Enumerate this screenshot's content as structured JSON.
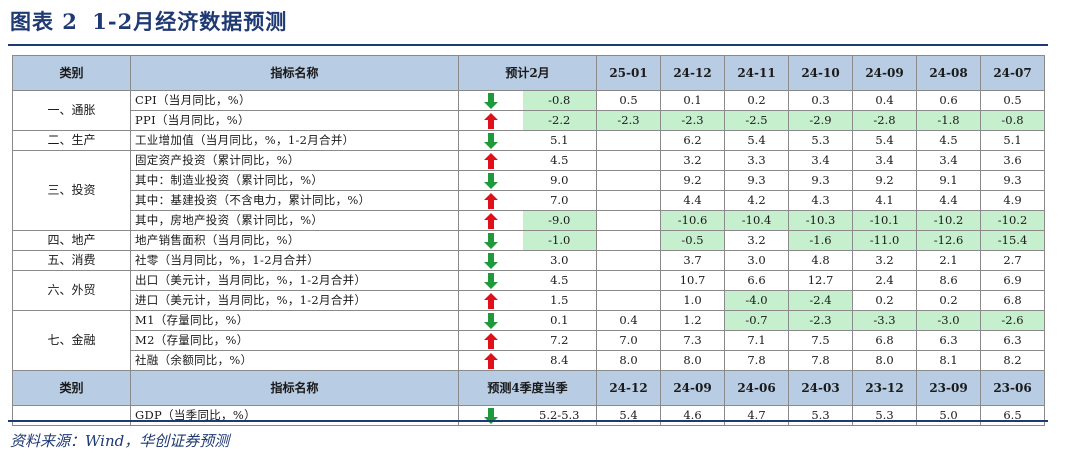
{
  "title": {
    "prefix": "图表 2",
    "text": "1-2月经济数据预测"
  },
  "colors": {
    "up": "#e0101a",
    "down": "#1f9a3a",
    "header_bg": "#b8cce4",
    "highlight": "#c6efce",
    "accent": "#1f3a73"
  },
  "header1": {
    "category": "类别",
    "indicator": "指标名称",
    "forecast": "预计2月",
    "periods": [
      "25-01",
      "24-12",
      "24-11",
      "24-10",
      "24-09",
      "24-08",
      "24-07"
    ]
  },
  "rows": [
    {
      "category": "一、通胀",
      "span": 2,
      "indicator": "CPI（当月同比，%）",
      "arrow": "down",
      "forecast": "-0.8",
      "forecast_hl": true,
      "values": [
        "0.5",
        "0.1",
        "0.2",
        "0.3",
        "0.4",
        "0.6",
        "0.5"
      ],
      "hl": []
    },
    {
      "indicator": "PPI（当月同比，%）",
      "arrow": "up",
      "forecast": "-2.2",
      "forecast_hl": true,
      "values": [
        "-2.3",
        "-2.3",
        "-2.5",
        "-2.9",
        "-2.8",
        "-1.8",
        "-0.8"
      ],
      "hl": [
        0,
        1,
        2,
        3,
        4,
        5,
        6
      ]
    },
    {
      "category": "二、生产",
      "span": 1,
      "indicator": "工业增加值（当月同比，%，1-2月合并）",
      "arrow": "down",
      "forecast": "5.1",
      "forecast_hl": false,
      "values": [
        "",
        "6.2",
        "5.4",
        "5.3",
        "5.4",
        "4.5",
        "5.1"
      ],
      "hl": []
    },
    {
      "category": "三、投资",
      "span": 4,
      "indicator": "固定资产投资（累计同比，%）",
      "arrow": "up",
      "forecast": "4.5",
      "forecast_hl": false,
      "values": [
        "",
        "3.2",
        "3.3",
        "3.4",
        "3.4",
        "3.4",
        "3.6"
      ],
      "hl": []
    },
    {
      "indicator": "其中：制造业投资（累计同比，%）",
      "arrow": "down",
      "forecast": "9.0",
      "forecast_hl": false,
      "values": [
        "",
        "9.2",
        "9.3",
        "9.3",
        "9.2",
        "9.1",
        "9.3"
      ],
      "hl": []
    },
    {
      "indicator": "其中：基建投资（不含电力，累计同比，%）",
      "arrow": "up",
      "forecast": "7.0",
      "forecast_hl": false,
      "values": [
        "",
        "4.4",
        "4.2",
        "4.3",
        "4.1",
        "4.4",
        "4.9"
      ],
      "hl": []
    },
    {
      "indicator": "其中，房地产投资（累计同比，%）",
      "arrow": "up",
      "forecast": "-9.0",
      "forecast_hl": true,
      "values": [
        "",
        "-10.6",
        "-10.4",
        "-10.3",
        "-10.1",
        "-10.2",
        "-10.2"
      ],
      "hl": [
        1,
        2,
        3,
        4,
        5,
        6
      ]
    },
    {
      "category": "四、地产",
      "span": 1,
      "indicator": "地产销售面积（当月同比，%）",
      "arrow": "down",
      "forecast": "-1.0",
      "forecast_hl": true,
      "values": [
        "",
        "-0.5",
        "3.2",
        "-1.6",
        "-11.0",
        "-12.6",
        "-15.4"
      ],
      "hl": [
        1,
        3,
        4,
        5,
        6
      ]
    },
    {
      "category": "五、消费",
      "span": 1,
      "indicator": "社零（当月同比，%，1-2月合并）",
      "arrow": "down",
      "forecast": "3.0",
      "forecast_hl": false,
      "values": [
        "",
        "3.7",
        "3.0",
        "4.8",
        "3.2",
        "2.1",
        "2.7"
      ],
      "hl": []
    },
    {
      "category": "六、外贸",
      "span": 2,
      "indicator": "出口（美元计，当月同比，%，1-2月合并）",
      "arrow": "down",
      "forecast": "4.5",
      "forecast_hl": false,
      "values": [
        "",
        "10.7",
        "6.6",
        "12.7",
        "2.4",
        "8.6",
        "6.9"
      ],
      "hl": []
    },
    {
      "indicator": "进口（美元计，当月同比，%，1-2月合并）",
      "arrow": "up",
      "forecast": "1.5",
      "forecast_hl": false,
      "values": [
        "",
        "1.0",
        "-4.0",
        "-2.4",
        "0.2",
        "0.2",
        "6.8"
      ],
      "hl": [
        2,
        3
      ]
    },
    {
      "category": "七、金融",
      "span": 3,
      "indicator": "M1（存量同比，%）",
      "arrow": "down",
      "forecast": "0.1",
      "forecast_hl": false,
      "values": [
        "0.4",
        "1.2",
        "-0.7",
        "-2.3",
        "-3.3",
        "-3.0",
        "-2.6"
      ],
      "hl": [
        2,
        3,
        4,
        5,
        6
      ]
    },
    {
      "indicator": "M2（存量同比，%）",
      "arrow": "up",
      "forecast": "7.2",
      "forecast_hl": false,
      "values": [
        "7.0",
        "7.3",
        "7.1",
        "7.5",
        "6.8",
        "6.3",
        "6.3"
      ],
      "hl": []
    },
    {
      "indicator": "社融（余额同比，%）",
      "arrow": "up",
      "forecast": "8.4",
      "forecast_hl": false,
      "values": [
        "8.0",
        "8.0",
        "7.8",
        "7.8",
        "8.0",
        "8.1",
        "8.2"
      ],
      "hl": []
    }
  ],
  "header2": {
    "category": "类别",
    "indicator": "指标名称",
    "forecast": "预测4季度当季",
    "periods": [
      "24-12",
      "24-09",
      "24-06",
      "24-03",
      "23-12",
      "23-09",
      "23-06"
    ]
  },
  "gdp_row": {
    "indicator": "GDP（当季同比，%）",
    "arrow": "down",
    "forecast": "5.2-5.3",
    "values": [
      "5.4",
      "4.6",
      "4.7",
      "5.3",
      "5.3",
      "5.0",
      "6.5"
    ]
  },
  "source": "资料来源：Wind，华创证券预测"
}
